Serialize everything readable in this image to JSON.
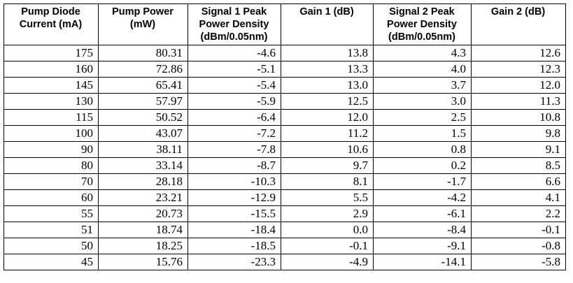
{
  "table": {
    "columns": [
      "Pump Diode Current (mA)",
      "Pump Power (mW)",
      "Signal 1 Peak Power Density (dBm/0.05nm)",
      "Gain 1 (dB)",
      "Signal 2 Peak Power Density (dBm/0.05nm)",
      "Gain 2 (dB)"
    ],
    "rows": [
      [
        "175",
        "80.31",
        "-4.6",
        "13.8",
        "4.3",
        "12.6"
      ],
      [
        "160",
        "72.86",
        "-5.1",
        "13.3",
        "4.0",
        "12.3"
      ],
      [
        "145",
        "65.41",
        "-5.4",
        "13.0",
        "3.7",
        "12.0"
      ],
      [
        "130",
        "57.97",
        "-5.9",
        "12.5",
        "3.0",
        "11.3"
      ],
      [
        "115",
        "50.52",
        "-6.4",
        "12.0",
        "2.5",
        "10.8"
      ],
      [
        "100",
        "43.07",
        "-7.2",
        "11.2",
        "1.5",
        "9.8"
      ],
      [
        "90",
        "38.11",
        "-7.8",
        "10.6",
        "0.8",
        "9.1"
      ],
      [
        "80",
        "33.14",
        "-8.7",
        "9.7",
        "0.2",
        "8.5"
      ],
      [
        "70",
        "28.18",
        "-10.3",
        "8.1",
        "-1.7",
        "6.6"
      ],
      [
        "60",
        "23.21",
        "-12.9",
        "5.5",
        "-4.2",
        "4.1"
      ],
      [
        "55",
        "20.73",
        "-15.5",
        "2.9",
        "-6.1",
        "2.2"
      ],
      [
        "51",
        "18.74",
        "-18.4",
        "0.0",
        "-8.4",
        "-0.1"
      ],
      [
        "50",
        "18.25",
        "-18.5",
        "-0.1",
        "-9.1",
        "-0.8"
      ],
      [
        "45",
        "15.76",
        "-23.3",
        "-4.9",
        "-14.1",
        "-5.8"
      ]
    ]
  }
}
